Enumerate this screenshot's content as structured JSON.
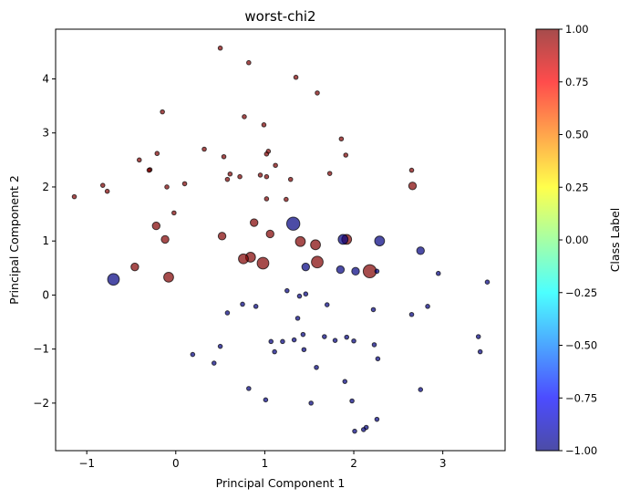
{
  "chart_data": {
    "type": "scatter",
    "title": "worst-chi2",
    "xlabel": "Principal Component 1",
    "ylabel": "Principal Component 2",
    "xlim": [
      -1.35,
      3.7
    ],
    "ylim": [
      -2.88,
      4.92
    ],
    "xticks": [
      "−1",
      "0",
      "1",
      "2",
      "3"
    ],
    "xtick_values": [
      -1,
      0,
      1,
      2,
      3
    ],
    "yticks": [
      "−2",
      "−1",
      "0",
      "1",
      "2",
      "3",
      "4"
    ],
    "ytick_values": [
      -2,
      -1,
      0,
      1,
      2,
      3,
      4
    ],
    "grid": false,
    "colorbar": {
      "label": "Class Label",
      "range": [
        -1.0,
        1.0
      ],
      "colormap": "jet",
      "alpha": 0.7,
      "ticks": [
        "−1.00",
        "−0.75",
        "−0.50",
        "−0.25",
        "0.00",
        "0.25",
        "0.50",
        "0.75",
        "1.00"
      ],
      "tick_values": [
        -1.0,
        -0.75,
        -0.5,
        -0.25,
        0.0,
        0.25,
        0.5,
        0.75,
        1.0
      ]
    },
    "marker_edge_color": "#000000",
    "colors": {
      "class_1": "#800000",
      "class_-1": "#000080"
    },
    "points": [
      {
        "x": 0.5,
        "y": 4.57,
        "label": 1,
        "size": "small"
      },
      {
        "x": 0.82,
        "y": 4.3,
        "label": 1,
        "size": "small"
      },
      {
        "x": 1.35,
        "y": 4.03,
        "label": 1,
        "size": "small"
      },
      {
        "x": 1.59,
        "y": 3.74,
        "label": 1,
        "size": "small"
      },
      {
        "x": -0.15,
        "y": 3.39,
        "label": 1,
        "size": "small"
      },
      {
        "x": 0.77,
        "y": 3.3,
        "label": 1,
        "size": "small"
      },
      {
        "x": 0.99,
        "y": 3.15,
        "label": 1,
        "size": "small"
      },
      {
        "x": 1.86,
        "y": 2.89,
        "label": 1,
        "size": "small"
      },
      {
        "x": 0.32,
        "y": 2.7,
        "label": 1,
        "size": "small"
      },
      {
        "x": 1.04,
        "y": 2.66,
        "label": 1,
        "size": "small"
      },
      {
        "x": -0.21,
        "y": 2.62,
        "label": 1,
        "size": "small"
      },
      {
        "x": 1.02,
        "y": 2.61,
        "label": 1,
        "size": "small"
      },
      {
        "x": 1.91,
        "y": 2.59,
        "label": 1,
        "size": "small"
      },
      {
        "x": 0.54,
        "y": 2.56,
        "label": 1,
        "size": "small"
      },
      {
        "x": -0.41,
        "y": 2.5,
        "label": 1,
        "size": "small"
      },
      {
        "x": 1.12,
        "y": 2.4,
        "label": 1,
        "size": "small"
      },
      {
        "x": -0.29,
        "y": 2.32,
        "label": 1,
        "size": "small"
      },
      {
        "x": -0.3,
        "y": 2.31,
        "label": 1,
        "size": "small"
      },
      {
        "x": 2.65,
        "y": 2.31,
        "label": 1,
        "size": "small"
      },
      {
        "x": 1.73,
        "y": 2.25,
        "label": 1,
        "size": "small"
      },
      {
        "x": 0.61,
        "y": 2.24,
        "label": 1,
        "size": "small"
      },
      {
        "x": 0.95,
        "y": 2.22,
        "label": 1,
        "size": "small"
      },
      {
        "x": 0.72,
        "y": 2.19,
        "label": 1,
        "size": "small"
      },
      {
        "x": 1.02,
        "y": 2.19,
        "label": 1,
        "size": "small"
      },
      {
        "x": 0.58,
        "y": 2.14,
        "label": 1,
        "size": "small"
      },
      {
        "x": 1.29,
        "y": 2.14,
        "label": 1,
        "size": "small"
      },
      {
        "x": 0.1,
        "y": 2.06,
        "label": 1,
        "size": "small"
      },
      {
        "x": -0.82,
        "y": 2.03,
        "label": 1,
        "size": "small"
      },
      {
        "x": 2.66,
        "y": 2.02,
        "label": 1,
        "size": "medium"
      },
      {
        "x": -0.1,
        "y": 2.0,
        "label": 1,
        "size": "small"
      },
      {
        "x": -0.77,
        "y": 1.92,
        "label": 1,
        "size": "small"
      },
      {
        "x": -1.14,
        "y": 1.82,
        "label": 1,
        "size": "small"
      },
      {
        "x": 1.02,
        "y": 1.78,
        "label": 1,
        "size": "small"
      },
      {
        "x": 1.24,
        "y": 1.77,
        "label": 1,
        "size": "small"
      },
      {
        "x": -0.02,
        "y": 1.52,
        "label": 1,
        "size": "small"
      },
      {
        "x": 0.88,
        "y": 1.34,
        "label": 1,
        "size": "medium"
      },
      {
        "x": -0.22,
        "y": 1.28,
        "label": 1,
        "size": "medium"
      },
      {
        "x": 1.06,
        "y": 1.13,
        "label": 1,
        "size": "medium"
      },
      {
        "x": 0.52,
        "y": 1.09,
        "label": 1,
        "size": "medium"
      },
      {
        "x": -0.12,
        "y": 1.03,
        "label": 1,
        "size": "medium"
      },
      {
        "x": 1.92,
        "y": 1.03,
        "label": 1,
        "size": "large"
      },
      {
        "x": 1.4,
        "y": 0.99,
        "label": 1,
        "size": "large"
      },
      {
        "x": 1.57,
        "y": 0.93,
        "label": 1,
        "size": "large"
      },
      {
        "x": 0.84,
        "y": 0.7,
        "label": 1,
        "size": "large"
      },
      {
        "x": 0.76,
        "y": 0.67,
        "label": 1,
        "size": "large"
      },
      {
        "x": 1.59,
        "y": 0.61,
        "label": 1,
        "size": "xlarge"
      },
      {
        "x": 0.98,
        "y": 0.59,
        "label": 1,
        "size": "xlarge"
      },
      {
        "x": -0.46,
        "y": 0.52,
        "label": 1,
        "size": "medium"
      },
      {
        "x": 2.18,
        "y": 0.44,
        "label": 1,
        "size": "xxlarge"
      },
      {
        "x": -0.08,
        "y": 0.33,
        "label": 1,
        "size": "large"
      },
      {
        "x": 1.32,
        "y": 1.32,
        "label": -1,
        "size": "xxlarge"
      },
      {
        "x": 1.88,
        "y": 1.03,
        "label": -1,
        "size": "large"
      },
      {
        "x": 2.29,
        "y": 1.0,
        "label": -1,
        "size": "large"
      },
      {
        "x": 2.75,
        "y": 0.82,
        "label": -1,
        "size": "medium"
      },
      {
        "x": 1.46,
        "y": 0.52,
        "label": -1,
        "size": "medium"
      },
      {
        "x": 1.85,
        "y": 0.47,
        "label": -1,
        "size": "medium"
      },
      {
        "x": 2.02,
        "y": 0.44,
        "label": -1,
        "size": "medium"
      },
      {
        "x": 2.26,
        "y": 0.44,
        "label": -1,
        "size": "small"
      },
      {
        "x": 2.95,
        "y": 0.4,
        "label": -1,
        "size": "small"
      },
      {
        "x": 3.5,
        "y": 0.24,
        "label": -1,
        "size": "small"
      },
      {
        "x": -0.7,
        "y": 0.29,
        "label": -1,
        "size": "xlarge"
      },
      {
        "x": 1.25,
        "y": 0.08,
        "label": -1,
        "size": "small"
      },
      {
        "x": 1.46,
        "y": 0.02,
        "label": -1,
        "size": "small"
      },
      {
        "x": 1.39,
        "y": -0.02,
        "label": -1,
        "size": "small"
      },
      {
        "x": 0.75,
        "y": -0.17,
        "label": -1,
        "size": "small"
      },
      {
        "x": 0.9,
        "y": -0.21,
        "label": -1,
        "size": "small"
      },
      {
        "x": 1.7,
        "y": -0.18,
        "label": -1,
        "size": "small"
      },
      {
        "x": 2.22,
        "y": -0.27,
        "label": -1,
        "size": "small"
      },
      {
        "x": 2.83,
        "y": -0.21,
        "label": -1,
        "size": "small"
      },
      {
        "x": 0.58,
        "y": -0.33,
        "label": -1,
        "size": "small"
      },
      {
        "x": 2.65,
        "y": -0.36,
        "label": -1,
        "size": "small"
      },
      {
        "x": 1.37,
        "y": -0.43,
        "label": -1,
        "size": "small"
      },
      {
        "x": 1.43,
        "y": -0.73,
        "label": -1,
        "size": "small"
      },
      {
        "x": 1.67,
        "y": -0.77,
        "label": -1,
        "size": "small"
      },
      {
        "x": 1.92,
        "y": -0.78,
        "label": -1,
        "size": "small"
      },
      {
        "x": 1.33,
        "y": -0.83,
        "label": -1,
        "size": "small"
      },
      {
        "x": 1.79,
        "y": -0.84,
        "label": -1,
        "size": "small"
      },
      {
        "x": 3.4,
        "y": -0.77,
        "label": -1,
        "size": "small"
      },
      {
        "x": 1.07,
        "y": -0.86,
        "label": -1,
        "size": "small"
      },
      {
        "x": 1.2,
        "y": -0.86,
        "label": -1,
        "size": "small"
      },
      {
        "x": 2.0,
        "y": -0.85,
        "label": -1,
        "size": "small"
      },
      {
        "x": 2.23,
        "y": -0.92,
        "label": -1,
        "size": "small"
      },
      {
        "x": 0.5,
        "y": -0.95,
        "label": -1,
        "size": "small"
      },
      {
        "x": 1.44,
        "y": -1.01,
        "label": -1,
        "size": "small"
      },
      {
        "x": 1.11,
        "y": -1.05,
        "label": -1,
        "size": "small"
      },
      {
        "x": 3.42,
        "y": -1.05,
        "label": -1,
        "size": "small"
      },
      {
        "x": 0.19,
        "y": -1.1,
        "label": -1,
        "size": "small"
      },
      {
        "x": 2.27,
        "y": -1.18,
        "label": -1,
        "size": "small"
      },
      {
        "x": 0.43,
        "y": -1.26,
        "label": -1,
        "size": "small"
      },
      {
        "x": 1.58,
        "y": -1.34,
        "label": -1,
        "size": "small"
      },
      {
        "x": 1.9,
        "y": -1.6,
        "label": -1,
        "size": "small"
      },
      {
        "x": 0.82,
        "y": -1.73,
        "label": -1,
        "size": "small"
      },
      {
        "x": 2.75,
        "y": -1.75,
        "label": -1,
        "size": "small"
      },
      {
        "x": 1.01,
        "y": -1.94,
        "label": -1,
        "size": "small"
      },
      {
        "x": 1.98,
        "y": -1.96,
        "label": -1,
        "size": "small"
      },
      {
        "x": 1.52,
        "y": -2.0,
        "label": -1,
        "size": "small"
      },
      {
        "x": 2.26,
        "y": -2.3,
        "label": -1,
        "size": "small"
      },
      {
        "x": 2.14,
        "y": -2.45,
        "label": -1,
        "size": "small"
      },
      {
        "x": 2.11,
        "y": -2.49,
        "label": -1,
        "size": "small"
      },
      {
        "x": 2.01,
        "y": -2.52,
        "label": -1,
        "size": "small"
      }
    ]
  }
}
